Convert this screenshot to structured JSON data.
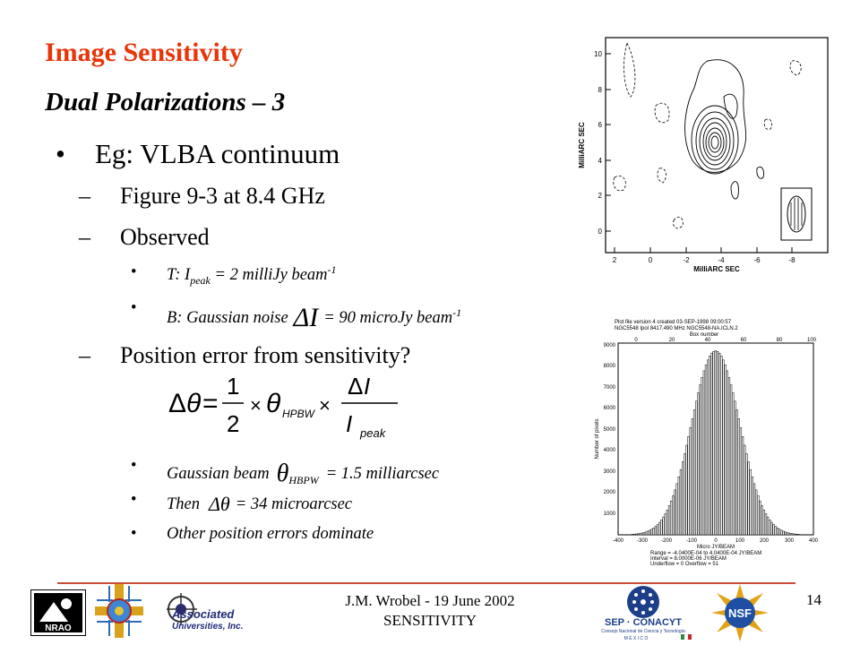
{
  "slide": {
    "title": "Image Sensitivity",
    "subtitle": "Dual Polarizations – 3",
    "bullet_main": "Eg: VLBA continuum",
    "dash_1": "Figure 9-3 at 8.4 GHz",
    "dash_2": "Observed",
    "sub_t_prefix": "T: I",
    "sub_t_subscript": "peak",
    "sub_t_suffix": " = 2 milliJy beam",
    "sub_t_exp": "-1",
    "sub_b_prefix": "B: Gaussian noise",
    "sub_b_suffix": "= 90 microJy beam",
    "sub_b_exp": "-1",
    "dash_3": "Position error from sensitivity?",
    "sub_beam_prefix": "Gaussian beam",
    "sub_beam_suffix": "= 1.5 milliarcsec",
    "sub_then_prefix": "Then",
    "sub_then_suffix": "= 34 microarcsec",
    "sub_other": "Other position errors dominate"
  },
  "contour_plot": {
    "xlabel": "MilliARC SEC",
    "ylabel": "MilliARC SEC",
    "x_ticks": [
      "2",
      "0",
      "-2",
      "-4",
      "-6",
      "-8"
    ],
    "y_ticks": [
      "10",
      "8",
      "6",
      "4",
      "2",
      "0"
    ]
  },
  "histogram": {
    "header_lines": [
      "Plot file version 4  created 03-SEP-1998 09:00:57",
      "NGC5548 Ipol 8417.490 MHz  NGC5548-NA.ICLN.2",
      "Box number"
    ],
    "top_ticks": [
      "0",
      "20",
      "40",
      "60",
      "80",
      "100"
    ],
    "x_ticks": [
      "-400",
      "-300",
      "-200",
      "-100",
      "0",
      "100",
      "200",
      "300",
      "400"
    ],
    "y_ticks": [
      "9000",
      "8000",
      "7000",
      "6000",
      "5000",
      "4000",
      "3000",
      "2000",
      "1000"
    ],
    "xlabel": "Micro JY/BEAM",
    "ylabel": "Number of pixels",
    "footer_lines": [
      "Range = -4.0400E-04 to 4.0400E-04 JY/BEAM",
      "Interval = 8.0000E-06 JY/BEAM",
      "Underflow = 0  Overflow = 51"
    ]
  },
  "footer": {
    "line1": "J.M. Wrobel  - 19 June 2002",
    "line2": "SENSITIVITY",
    "page": "14",
    "logo_nrao": "NRAO",
    "logo_aui_1": "Associated",
    "logo_aui_2": "Universities, Inc.",
    "logo_conacyt": "SEP · CONACYT",
    "logo_conacyt_sub": "Consejo Nacional de Ciencia y Tecnología",
    "logo_conacyt_mexico": "M É X I C O",
    "logo_nsf": "NSF"
  }
}
